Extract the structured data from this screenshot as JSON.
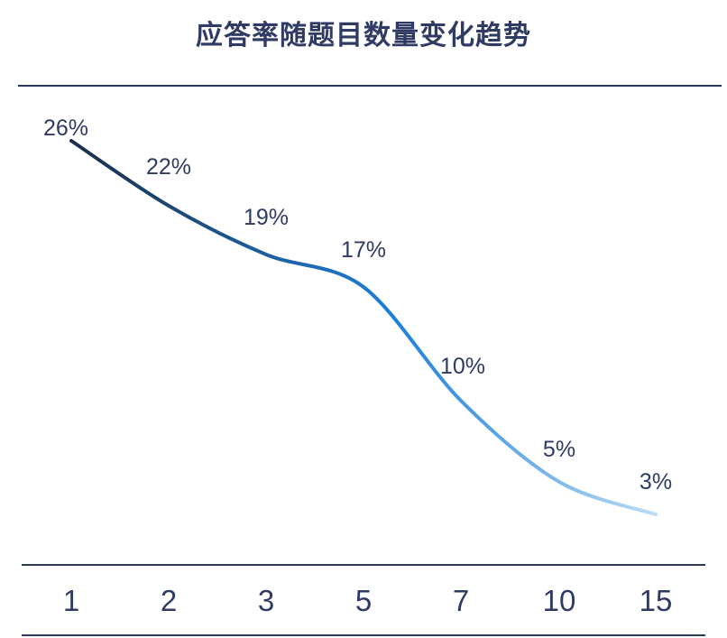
{
  "chart_data": {
    "type": "line",
    "title": "应答率随题目数量变化趋势",
    "xlabel": "",
    "ylabel": "",
    "categories": [
      "1",
      "2",
      "3",
      "5",
      "7",
      "10",
      "15"
    ],
    "values": [
      26,
      22,
      19,
      17,
      10,
      5,
      3
    ],
    "data_labels": [
      "26%",
      "22%",
      "19%",
      "17%",
      "10%",
      "5%",
      "3%"
    ],
    "ylim": [
      0,
      28
    ],
    "grid": false,
    "legend": "none",
    "colors": {
      "line_start": "#1c2e4a",
      "line_mid": "#1e7fd6",
      "line_end": "#b9dcf6",
      "text": "#2f3b63",
      "rules": "#2b3a5c"
    }
  }
}
